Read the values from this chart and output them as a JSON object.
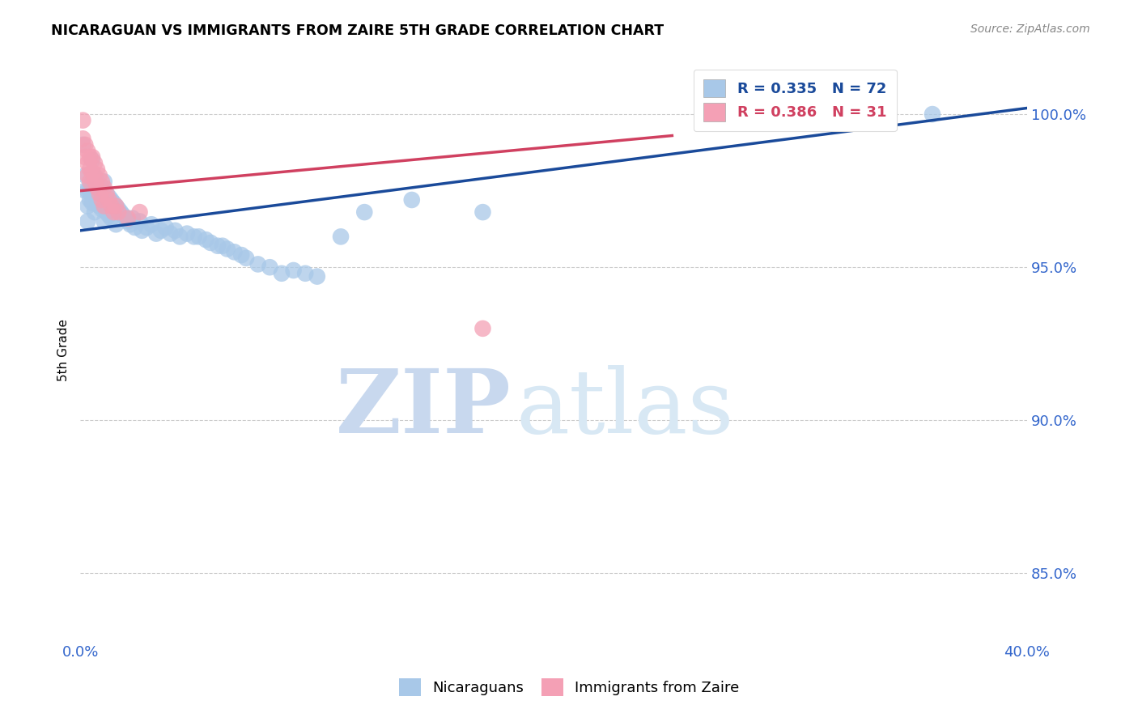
{
  "title": "NICARAGUAN VS IMMIGRANTS FROM ZAIRE 5TH GRADE CORRELATION CHART",
  "source": "Source: ZipAtlas.com",
  "ylabel": "5th Grade",
  "ytick_labels": [
    "100.0%",
    "95.0%",
    "90.0%",
    "85.0%"
  ],
  "ytick_values": [
    1.0,
    0.95,
    0.9,
    0.85
  ],
  "xlim": [
    0.0,
    0.4
  ],
  "ylim": [
    0.828,
    1.018
  ],
  "legend_blue_r": "0.335",
  "legend_blue_n": "72",
  "legend_pink_r": "0.386",
  "legend_pink_n": "31",
  "blue_color": "#a8c8e8",
  "pink_color": "#f4a0b5",
  "trendline_blue": "#1a4a9a",
  "trendline_pink": "#d04060",
  "blue_scatter_x": [
    0.001,
    0.002,
    0.002,
    0.003,
    0.003,
    0.003,
    0.004,
    0.004,
    0.005,
    0.005,
    0.005,
    0.006,
    0.006,
    0.006,
    0.007,
    0.007,
    0.008,
    0.008,
    0.009,
    0.009,
    0.01,
    0.01,
    0.01,
    0.011,
    0.011,
    0.012,
    0.012,
    0.013,
    0.013,
    0.014,
    0.015,
    0.015,
    0.016,
    0.017,
    0.018,
    0.019,
    0.02,
    0.021,
    0.022,
    0.023,
    0.025,
    0.026,
    0.028,
    0.03,
    0.032,
    0.034,
    0.036,
    0.038,
    0.04,
    0.042,
    0.045,
    0.048,
    0.05,
    0.053,
    0.055,
    0.058,
    0.06,
    0.062,
    0.065,
    0.068,
    0.07,
    0.075,
    0.08,
    0.085,
    0.09,
    0.095,
    0.1,
    0.11,
    0.12,
    0.14,
    0.17,
    0.36
  ],
  "blue_scatter_y": [
    0.99,
    0.98,
    0.975,
    0.975,
    0.97,
    0.965,
    0.975,
    0.972,
    0.985,
    0.978,
    0.971,
    0.98,
    0.974,
    0.968,
    0.978,
    0.972,
    0.977,
    0.97,
    0.976,
    0.969,
    0.978,
    0.971,
    0.965,
    0.974,
    0.968,
    0.973,
    0.967,
    0.972,
    0.966,
    0.971,
    0.97,
    0.964,
    0.969,
    0.968,
    0.967,
    0.966,
    0.965,
    0.964,
    0.966,
    0.963,
    0.965,
    0.962,
    0.963,
    0.964,
    0.961,
    0.962,
    0.963,
    0.961,
    0.962,
    0.96,
    0.961,
    0.96,
    0.96,
    0.959,
    0.958,
    0.957,
    0.957,
    0.956,
    0.955,
    0.954,
    0.953,
    0.951,
    0.95,
    0.948,
    0.949,
    0.948,
    0.947,
    0.96,
    0.968,
    0.972,
    0.968,
    1.0
  ],
  "pink_scatter_x": [
    0.001,
    0.001,
    0.002,
    0.002,
    0.003,
    0.003,
    0.003,
    0.004,
    0.004,
    0.004,
    0.005,
    0.005,
    0.006,
    0.006,
    0.007,
    0.007,
    0.008,
    0.008,
    0.009,
    0.009,
    0.01,
    0.01,
    0.011,
    0.012,
    0.013,
    0.014,
    0.015,
    0.016,
    0.02,
    0.025,
    0.17
  ],
  "pink_scatter_y": [
    0.998,
    0.992,
    0.99,
    0.986,
    0.988,
    0.984,
    0.98,
    0.986,
    0.982,
    0.978,
    0.986,
    0.981,
    0.984,
    0.978,
    0.982,
    0.976,
    0.98,
    0.974,
    0.978,
    0.972,
    0.976,
    0.97,
    0.974,
    0.972,
    0.97,
    0.968,
    0.97,
    0.968,
    0.966,
    0.968,
    0.93
  ],
  "trendline_blue_x0": 0.0,
  "trendline_blue_y0": 0.962,
  "trendline_blue_x1": 0.4,
  "trendline_blue_y1": 1.002,
  "trendline_pink_x0": 0.0,
  "trendline_pink_y0": 0.975,
  "trendline_pink_x1": 0.25,
  "trendline_pink_y1": 0.993,
  "watermark_zip": "ZIP",
  "watermark_atlas": "atlas",
  "background_color": "#ffffff",
  "grid_color": "#cccccc"
}
